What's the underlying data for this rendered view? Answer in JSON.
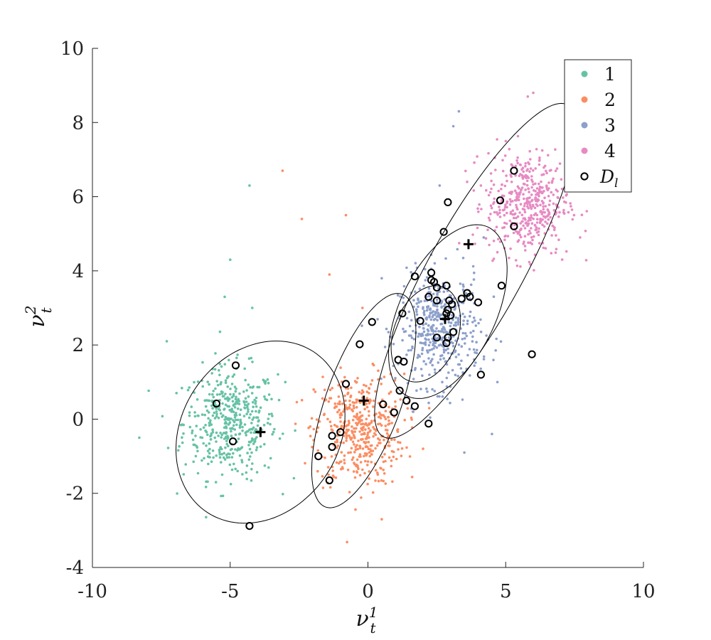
{
  "chart_data": {
    "type": "scatter",
    "title": "",
    "xlabel": "ν_t^1",
    "ylabel": "ν_t^2",
    "xlim": [
      -10,
      10
    ],
    "ylim": [
      -4,
      10
    ],
    "xticks": [
      -10,
      -5,
      0,
      5,
      10
    ],
    "yticks": [
      -4,
      -2,
      0,
      2,
      4,
      6,
      8,
      10
    ],
    "xtick_labels": [
      "-10",
      "-5",
      "0",
      "5",
      "10"
    ],
    "ytick_labels": [
      "-4",
      "-2",
      "0",
      "2",
      "4",
      "6",
      "8",
      "10"
    ],
    "grid": false,
    "legend_position": "top-right",
    "series": [
      {
        "name": "1",
        "color": "#66c2a5",
        "cluster_center": [
          -5.0,
          -0.1
        ],
        "cluster_spread": [
          0.85,
          0.75
        ],
        "point_count": 450,
        "outliers": [
          [
            -4.3,
            6.3
          ],
          [
            -5.0,
            4.3
          ],
          [
            -4.2,
            3.0
          ],
          [
            -5.2,
            3.3
          ],
          [
            -7.3,
            2.1
          ],
          [
            -8.3,
            -0.5
          ],
          [
            -3.0,
            1.0
          ]
        ]
      },
      {
        "name": "2",
        "color": "#fc8d62",
        "cluster_center": [
          -0.3,
          -0.3
        ],
        "cluster_spread": [
          0.8,
          0.75
        ],
        "point_count": 450,
        "outliers": [
          [
            -3.1,
            6.7
          ],
          [
            -2.4,
            5.4
          ],
          [
            -0.8,
            5.5
          ],
          [
            -1.4,
            3.9
          ],
          [
            -0.2,
            3.0
          ],
          [
            0.5,
            -2.7
          ],
          [
            2.0,
            -0.8
          ]
        ]
      },
      {
        "name": "3",
        "color": "#8da0cb",
        "cluster_center": [
          2.6,
          2.4
        ],
        "cluster_spread": [
          0.75,
          0.75
        ],
        "point_count": 450,
        "outliers": [
          [
            3.3,
            8.3
          ],
          [
            3.1,
            7.9
          ],
          [
            2.6,
            6.3
          ],
          [
            4.2,
            4.9
          ],
          [
            4.7,
            1.0
          ],
          [
            4.5,
            -0.4
          ],
          [
            3.5,
            -0.9
          ],
          [
            0.5,
            3.8
          ]
        ]
      },
      {
        "name": "4",
        "color": "#e78ac3",
        "cluster_center": [
          5.8,
          5.8
        ],
        "cluster_spread": [
          0.75,
          0.7
        ],
        "point_count": 450,
        "outliers": [
          [
            6.0,
            8.8
          ],
          [
            5.8,
            8.7
          ],
          [
            5.0,
            7.5
          ],
          [
            4.1,
            6.3
          ],
          [
            3.6,
            6.4
          ],
          [
            7.7,
            4.9
          ]
        ]
      }
    ],
    "labeled_points": {
      "name": "D_l",
      "points": [
        [
          -4.8,
          1.45
        ],
        [
          -5.5,
          0.42
        ],
        [
          -4.9,
          -0.6
        ],
        [
          -4.3,
          -2.88
        ],
        [
          -1.8,
          -1.0
        ],
        [
          -1.3,
          -0.45
        ],
        [
          -1.3,
          -0.75
        ],
        [
          -1.0,
          -0.35
        ],
        [
          -0.8,
          0.95
        ],
        [
          -1.4,
          -1.65
        ],
        [
          -0.3,
          2.02
        ],
        [
          0.15,
          2.62
        ],
        [
          0.55,
          0.4
        ],
        [
          0.95,
          0.18
        ],
        [
          1.15,
          0.77
        ],
        [
          1.1,
          1.6
        ],
        [
          1.3,
          1.55
        ],
        [
          1.4,
          0.5
        ],
        [
          1.7,
          0.35
        ],
        [
          2.2,
          -0.12
        ],
        [
          1.25,
          2.85
        ],
        [
          1.9,
          2.65
        ],
        [
          1.7,
          3.85
        ],
        [
          2.3,
          3.95
        ],
        [
          2.3,
          3.75
        ],
        [
          2.4,
          3.7
        ],
        [
          2.5,
          3.55
        ],
        [
          2.2,
          3.3
        ],
        [
          2.5,
          3.2
        ],
        [
          2.85,
          3.6
        ],
        [
          2.95,
          3.2
        ],
        [
          3.05,
          3.1
        ],
        [
          2.9,
          2.95
        ],
        [
          2.85,
          2.85
        ],
        [
          3.0,
          2.8
        ],
        [
          2.9,
          2.2
        ],
        [
          2.5,
          2.2
        ],
        [
          2.85,
          2.05
        ],
        [
          3.1,
          2.35
        ],
        [
          3.4,
          3.25
        ],
        [
          3.6,
          3.4
        ],
        [
          3.7,
          3.3
        ],
        [
          4.0,
          3.15
        ],
        [
          4.1,
          1.2
        ],
        [
          2.75,
          5.05
        ],
        [
          2.9,
          5.85
        ],
        [
          4.85,
          3.6
        ],
        [
          4.8,
          5.9
        ],
        [
          5.3,
          6.7
        ],
        [
          5.3,
          5.2
        ],
        [
          5.95,
          1.75
        ]
      ]
    },
    "component_means": [
      [
        -3.9,
        -0.35
      ],
      [
        -0.15,
        0.5
      ],
      [
        2.8,
        2.7
      ],
      [
        3.65,
        4.72
      ]
    ],
    "component_ellipses": [
      {
        "center": [
          -3.9,
          -0.35
        ],
        "semi_major": 3.15,
        "semi_minor": 2.35,
        "angle_deg": 20
      },
      {
        "center": [
          -0.15,
          0.5
        ],
        "semi_major": 3.2,
        "semi_minor": 1.3,
        "angle_deg": 62
      },
      {
        "center": [
          2.9,
          2.9
        ],
        "semi_major": 2.75,
        "semi_minor": 1.6,
        "angle_deg": 50
      },
      {
        "center": [
          2.1,
          2.3
        ],
        "semi_major": 1.45,
        "semi_minor": 1.08,
        "angle_deg": 48
      },
      {
        "center": [
          3.9,
          4.0
        ],
        "semi_major": 5.6,
        "semi_minor": 1.55,
        "angle_deg": 52
      }
    ],
    "legend": {
      "entries": [
        {
          "label": "1",
          "series": "1"
        },
        {
          "label": "2",
          "series": "2"
        },
        {
          "label": "3",
          "series": "3"
        },
        {
          "label": "4",
          "series": "4"
        }
      ],
      "labeled_label_main": "D",
      "labeled_label_sub": "l"
    }
  }
}
